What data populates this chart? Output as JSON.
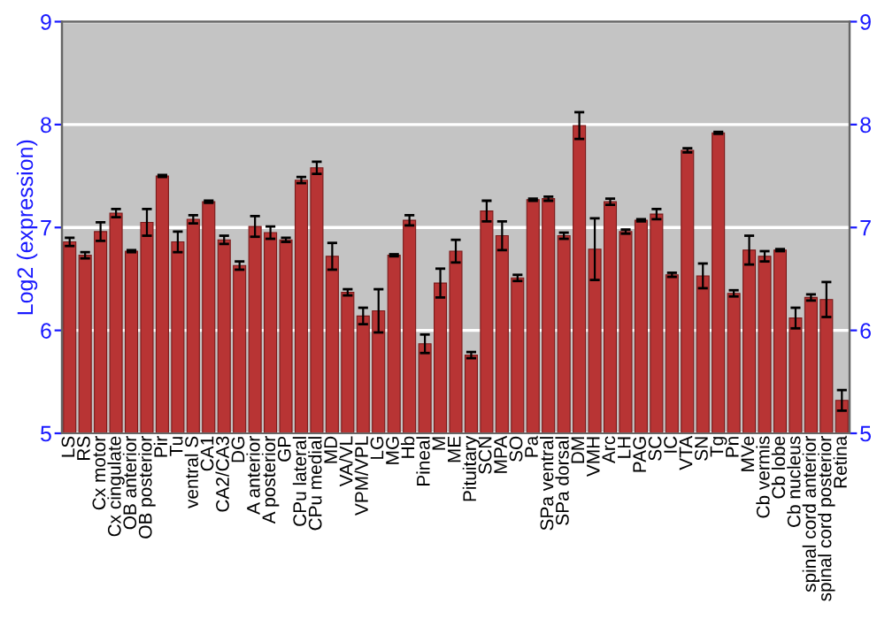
{
  "chart_data": {
    "type": "bar",
    "ylabel": "Log2 (expression)",
    "categories": [
      "LS",
      "RS",
      "Cx motor",
      "Cx cingulate",
      "OB anterior",
      "OB posterior",
      "Pir",
      "Tu",
      "ventral S",
      "CA1",
      "CA2/CA3",
      "DG",
      "A anterior",
      "A posterior",
      "GP",
      "CPu lateral",
      "CPu medial",
      "MD",
      "VA/VL",
      "VPM/VPL",
      "LG",
      "MG",
      "Hb",
      "Pineal",
      "M",
      "ME",
      "Pituitary",
      "SCN",
      "MPA",
      "SO",
      "Pa",
      "SPa ventral",
      "SPa dorsal",
      "DM",
      "VMH",
      "Arc",
      "LH",
      "PAG",
      "SC",
      "IC",
      "VTA",
      "SN",
      "Tg",
      "Pn",
      "MVe",
      "Cb vermis",
      "Cb lobe",
      "Cb nucleus",
      "spinal cord anterior",
      "spinal cord posterior",
      "Retina"
    ],
    "values": [
      6.86,
      6.73,
      6.96,
      7.14,
      6.77,
      7.05,
      7.5,
      6.86,
      7.08,
      7.25,
      6.88,
      6.63,
      7.01,
      6.95,
      6.88,
      7.46,
      7.58,
      6.72,
      6.37,
      6.14,
      6.19,
      6.73,
      7.07,
      5.87,
      6.46,
      6.77,
      5.76,
      7.16,
      6.92,
      6.51,
      7.27,
      7.28,
      6.92,
      7.99,
      6.79,
      7.25,
      6.96,
      7.07,
      7.13,
      6.54,
      7.75,
      6.53,
      7.92,
      6.36,
      6.78,
      6.72,
      6.78,
      6.12,
      6.32,
      6.3,
      5.32
    ],
    "errors": [
      0.04,
      0.03,
      0.09,
      0.04,
      0.01,
      0.13,
      0.01,
      0.1,
      0.04,
      0.01,
      0.04,
      0.04,
      0.1,
      0.06,
      0.02,
      0.03,
      0.06,
      0.13,
      0.03,
      0.08,
      0.21,
      0.01,
      0.05,
      0.09,
      0.14,
      0.11,
      0.03,
      0.1,
      0.14,
      0.03,
      0.01,
      0.02,
      0.03,
      0.13,
      0.3,
      0.03,
      0.02,
      0.01,
      0.05,
      0.02,
      0.02,
      0.12,
      0.01,
      0.03,
      0.14,
      0.05,
      0.01,
      0.1,
      0.03,
      0.17,
      0.1
    ],
    "color": "#b83434",
    "ylim": [
      5,
      9
    ],
    "yticks": [
      5,
      6,
      7,
      8,
      9
    ],
    "y2lim": [
      5,
      9
    ],
    "y2ticks": [
      5,
      6,
      7,
      8,
      9
    ],
    "grid": "y"
  }
}
